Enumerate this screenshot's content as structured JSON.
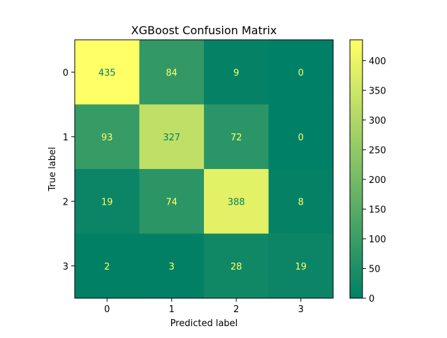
{
  "chart_data": {
    "type": "heatmap",
    "title": "XGBoost Confusion Matrix",
    "xlabel": "Predicted label",
    "ylabel": "True label",
    "x_categories": [
      "0",
      "1",
      "2",
      "3"
    ],
    "y_categories": [
      "0",
      "1",
      "2",
      "3"
    ],
    "values": [
      [
        435,
        84,
        9,
        0
      ],
      [
        93,
        327,
        72,
        0
      ],
      [
        19,
        74,
        388,
        8
      ],
      [
        2,
        3,
        28,
        19
      ]
    ],
    "colormap": "summer",
    "color_range": [
      0,
      435
    ],
    "colorbar_ticks": [
      0,
      50,
      100,
      150,
      200,
      250,
      300,
      350,
      400
    ],
    "colors": {
      "low": "#008066",
      "high": "#ffff66",
      "text_on_dark": "#ffff66",
      "text_on_light": "#008066"
    },
    "grid": false
  }
}
